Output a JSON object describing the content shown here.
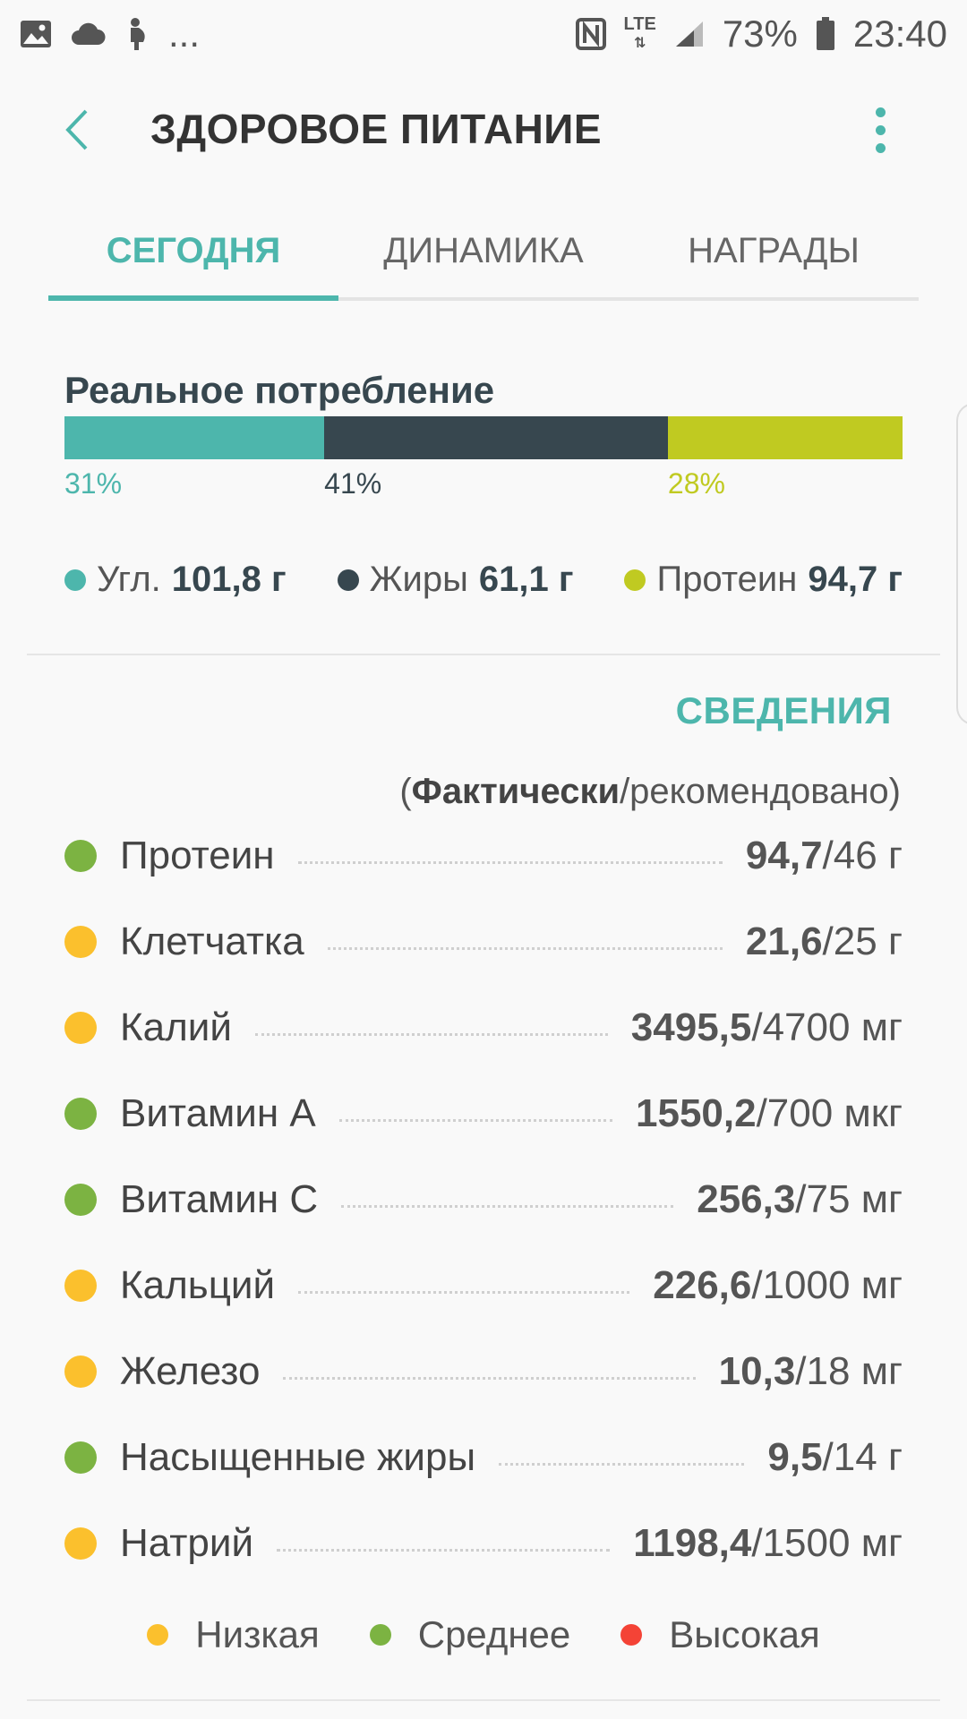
{
  "statusbar": {
    "more": "...",
    "network": "LTE",
    "battery": "73%",
    "time": "23:40"
  },
  "appbar": {
    "title": "ЗДОРОВОЕ ПИТАНИЕ"
  },
  "tabs": [
    {
      "label": "СЕГОДНЯ",
      "active": true
    },
    {
      "label": "ДИНАМИКА",
      "active": false
    },
    {
      "label": "НАГРАДЫ",
      "active": false
    }
  ],
  "intake": {
    "title": "Реальное потребление",
    "segments": [
      {
        "name": "carbs",
        "percent": 31,
        "label": "31%",
        "color": "#4db6ac"
      },
      {
        "name": "fats",
        "percent": 41,
        "label": "41%",
        "color": "#37474f"
      },
      {
        "name": "protein",
        "percent": 28,
        "label": "28%",
        "color": "#c0ca21"
      }
    ],
    "macros": [
      {
        "label": "Угл.",
        "value": "101,8 г",
        "color": "#4db6ac"
      },
      {
        "label": "Жиры",
        "value": "61,1 г",
        "color": "#37474f"
      },
      {
        "label": "Протеин",
        "value": "94,7 г",
        "color": "#c0ca21"
      }
    ]
  },
  "details": {
    "link": "СВЕДЕНИЯ",
    "header_open": "(",
    "header_bold": "Фактически",
    "header_rest": "/рекомендовано)"
  },
  "nutrients": [
    {
      "name": "Протеин",
      "actual": "94,7",
      "recommended": "/46 г",
      "color": "#7cb342"
    },
    {
      "name": "Клетчатка",
      "actual": "21,6",
      "recommended": "/25 г",
      "color": "#fbc02d"
    },
    {
      "name": "Калий",
      "actual": "3495,5",
      "recommended": "/4700 мг",
      "color": "#fbc02d"
    },
    {
      "name": "Витамин А",
      "actual": "1550,2",
      "recommended": "/700 мкг",
      "color": "#7cb342"
    },
    {
      "name": "Витамин С",
      "actual": "256,3",
      "recommended": "/75 мг",
      "color": "#7cb342"
    },
    {
      "name": "Кальций",
      "actual": "226,6",
      "recommended": "/1000 мг",
      "color": "#fbc02d"
    },
    {
      "name": "Железо",
      "actual": "10,3",
      "recommended": "/18 мг",
      "color": "#fbc02d"
    },
    {
      "name": "Насыщенные жиры",
      "actual": "9,5",
      "recommended": "/14 г",
      "color": "#7cb342"
    },
    {
      "name": "Натрий",
      "actual": "1198,4",
      "recommended": "/1500 мг",
      "color": "#fbc02d"
    }
  ],
  "levels": [
    {
      "label": "Низкая",
      "color": "#fbc02d"
    },
    {
      "label": "Среднее",
      "color": "#7cb342"
    },
    {
      "label": "Высокая",
      "color": "#f44336"
    }
  ]
}
